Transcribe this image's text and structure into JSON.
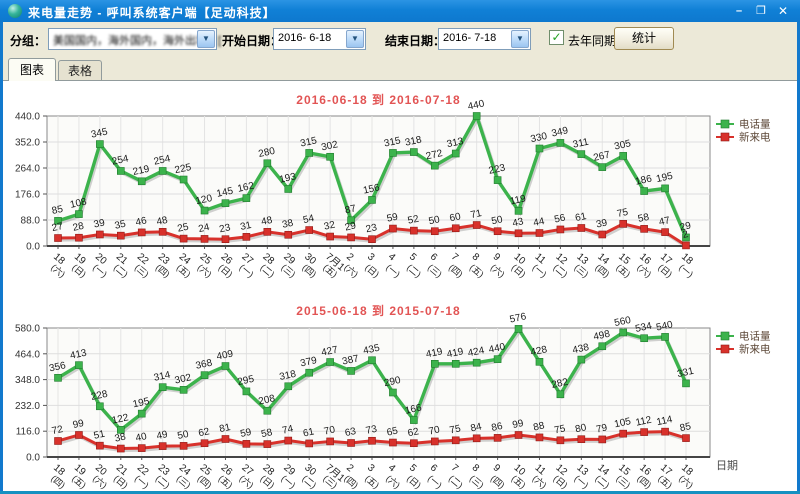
{
  "window": {
    "title": "来电量走势 - 呼叫系统客户端【足动科技】",
    "buttons": {
      "minimize": "–",
      "maximize": "❐",
      "close": "✕"
    }
  },
  "toolbar": {
    "group_label": "分组：",
    "group_value": "美国国内，海外国内，海外出境，[",
    "start_label": "开始日期：",
    "start_value": "2016- 6-18",
    "end_label": "结束日期：",
    "end_value": "2016- 7-18",
    "checkbox_label": "去年同期",
    "checkbox_checked": true,
    "stat_button": "统计"
  },
  "tabs": [
    {
      "label": "图表",
      "active": true
    },
    {
      "label": "表格",
      "active": false
    }
  ],
  "colors": {
    "titlebar_blue": "#1080D6",
    "call_volume_green": "#3CB34C",
    "new_calls_red": "#D8312B",
    "chart_title_red": "#E25454"
  },
  "chart_data": [
    {
      "type": "line",
      "title": "2016-06-18 到 2016-07-18",
      "xlabel": "",
      "ylabel": "",
      "ylim": [
        0,
        440
      ],
      "yticks": [
        "440.0",
        "352.0",
        "264.0",
        "176.0",
        "88.0",
        "0.0"
      ],
      "grid": true,
      "legend_position": "right",
      "categories": [
        "18",
        "19",
        "20",
        "21",
        "22",
        "23",
        "24",
        "25",
        "26",
        "27",
        "28",
        "29",
        "30",
        "7月1",
        "2",
        "3",
        "4",
        "5",
        "6",
        "7",
        "8",
        "9",
        "10",
        "11",
        "12",
        "13",
        "14",
        "15",
        "16",
        "17",
        "18"
      ],
      "weekdays": [
        "六",
        "日",
        "一",
        "二",
        "三",
        "四",
        "五",
        "六",
        "日",
        "一",
        "二",
        "三",
        "四",
        "五",
        "六",
        "日",
        "一",
        "二",
        "三",
        "四",
        "五",
        "六",
        "日",
        "一",
        "二",
        "三",
        "四",
        "五",
        "六",
        "日",
        "一"
      ],
      "series": [
        {
          "name": "电话量",
          "color": "#3CB34C",
          "values": [
            85,
            108,
            345,
            254,
            219,
            254,
            225,
            120,
            145,
            162,
            280,
            193,
            315,
            302,
            87,
            156,
            315,
            318,
            272,
            313,
            440,
            223,
            119,
            330,
            349,
            311,
            267,
            305,
            186,
            195,
            29
          ]
        },
        {
          "name": "新来电",
          "color": "#D8312B",
          "values": [
            27,
            28,
            39,
            35,
            46,
            48,
            25,
            24,
            23,
            31,
            48,
            38,
            54,
            32,
            29,
            23,
            59,
            52,
            50,
            60,
            71,
            50,
            43,
            44,
            56,
            61,
            39,
            75,
            58,
            47,
            2
          ]
        }
      ]
    },
    {
      "type": "line",
      "title": "2015-06-18 到 2015-07-18",
      "xlabel": "日期",
      "ylabel": "",
      "ylim": [
        0,
        580
      ],
      "yticks": [
        "580.0",
        "464.0",
        "348.0",
        "232.0",
        "116.0",
        "0.0"
      ],
      "grid": true,
      "legend_position": "right",
      "categories": [
        "18",
        "19",
        "20",
        "21",
        "22",
        "23",
        "24",
        "25",
        "26",
        "27",
        "28",
        "29",
        "30",
        "7月1",
        "2",
        "3",
        "4",
        "5",
        "6",
        "7",
        "8",
        "9",
        "10",
        "11",
        "12",
        "13",
        "14",
        "15",
        "16",
        "17",
        "18"
      ],
      "weekdays": [
        "四",
        "五",
        "六",
        "日",
        "一",
        "二",
        "三",
        "四",
        "五",
        "六",
        "日",
        "一",
        "二",
        "三",
        "四",
        "五",
        "六",
        "日",
        "一",
        "二",
        "三",
        "四",
        "五",
        "六",
        "日",
        "一",
        "二",
        "三",
        "四",
        "五",
        "六"
      ],
      "series": [
        {
          "name": "电话量",
          "color": "#3CB34C",
          "values": [
            356,
            413,
            228,
            122,
            195,
            314,
            302,
            368,
            409,
            295,
            208,
            318,
            379,
            427,
            387,
            435,
            290,
            166,
            419,
            419,
            424,
            440,
            576,
            428,
            282,
            438,
            498,
            560,
            534,
            540,
            331
          ]
        },
        {
          "name": "新来电",
          "color": "#D8312B",
          "values": [
            72,
            99,
            51,
            38,
            40,
            49,
            50,
            62,
            81,
            59,
            58,
            74,
            61,
            70,
            63,
            73,
            65,
            62,
            70,
            75,
            84,
            86,
            99,
            88,
            75,
            80,
            79,
            105,
            112,
            114,
            85
          ]
        }
      ]
    }
  ]
}
